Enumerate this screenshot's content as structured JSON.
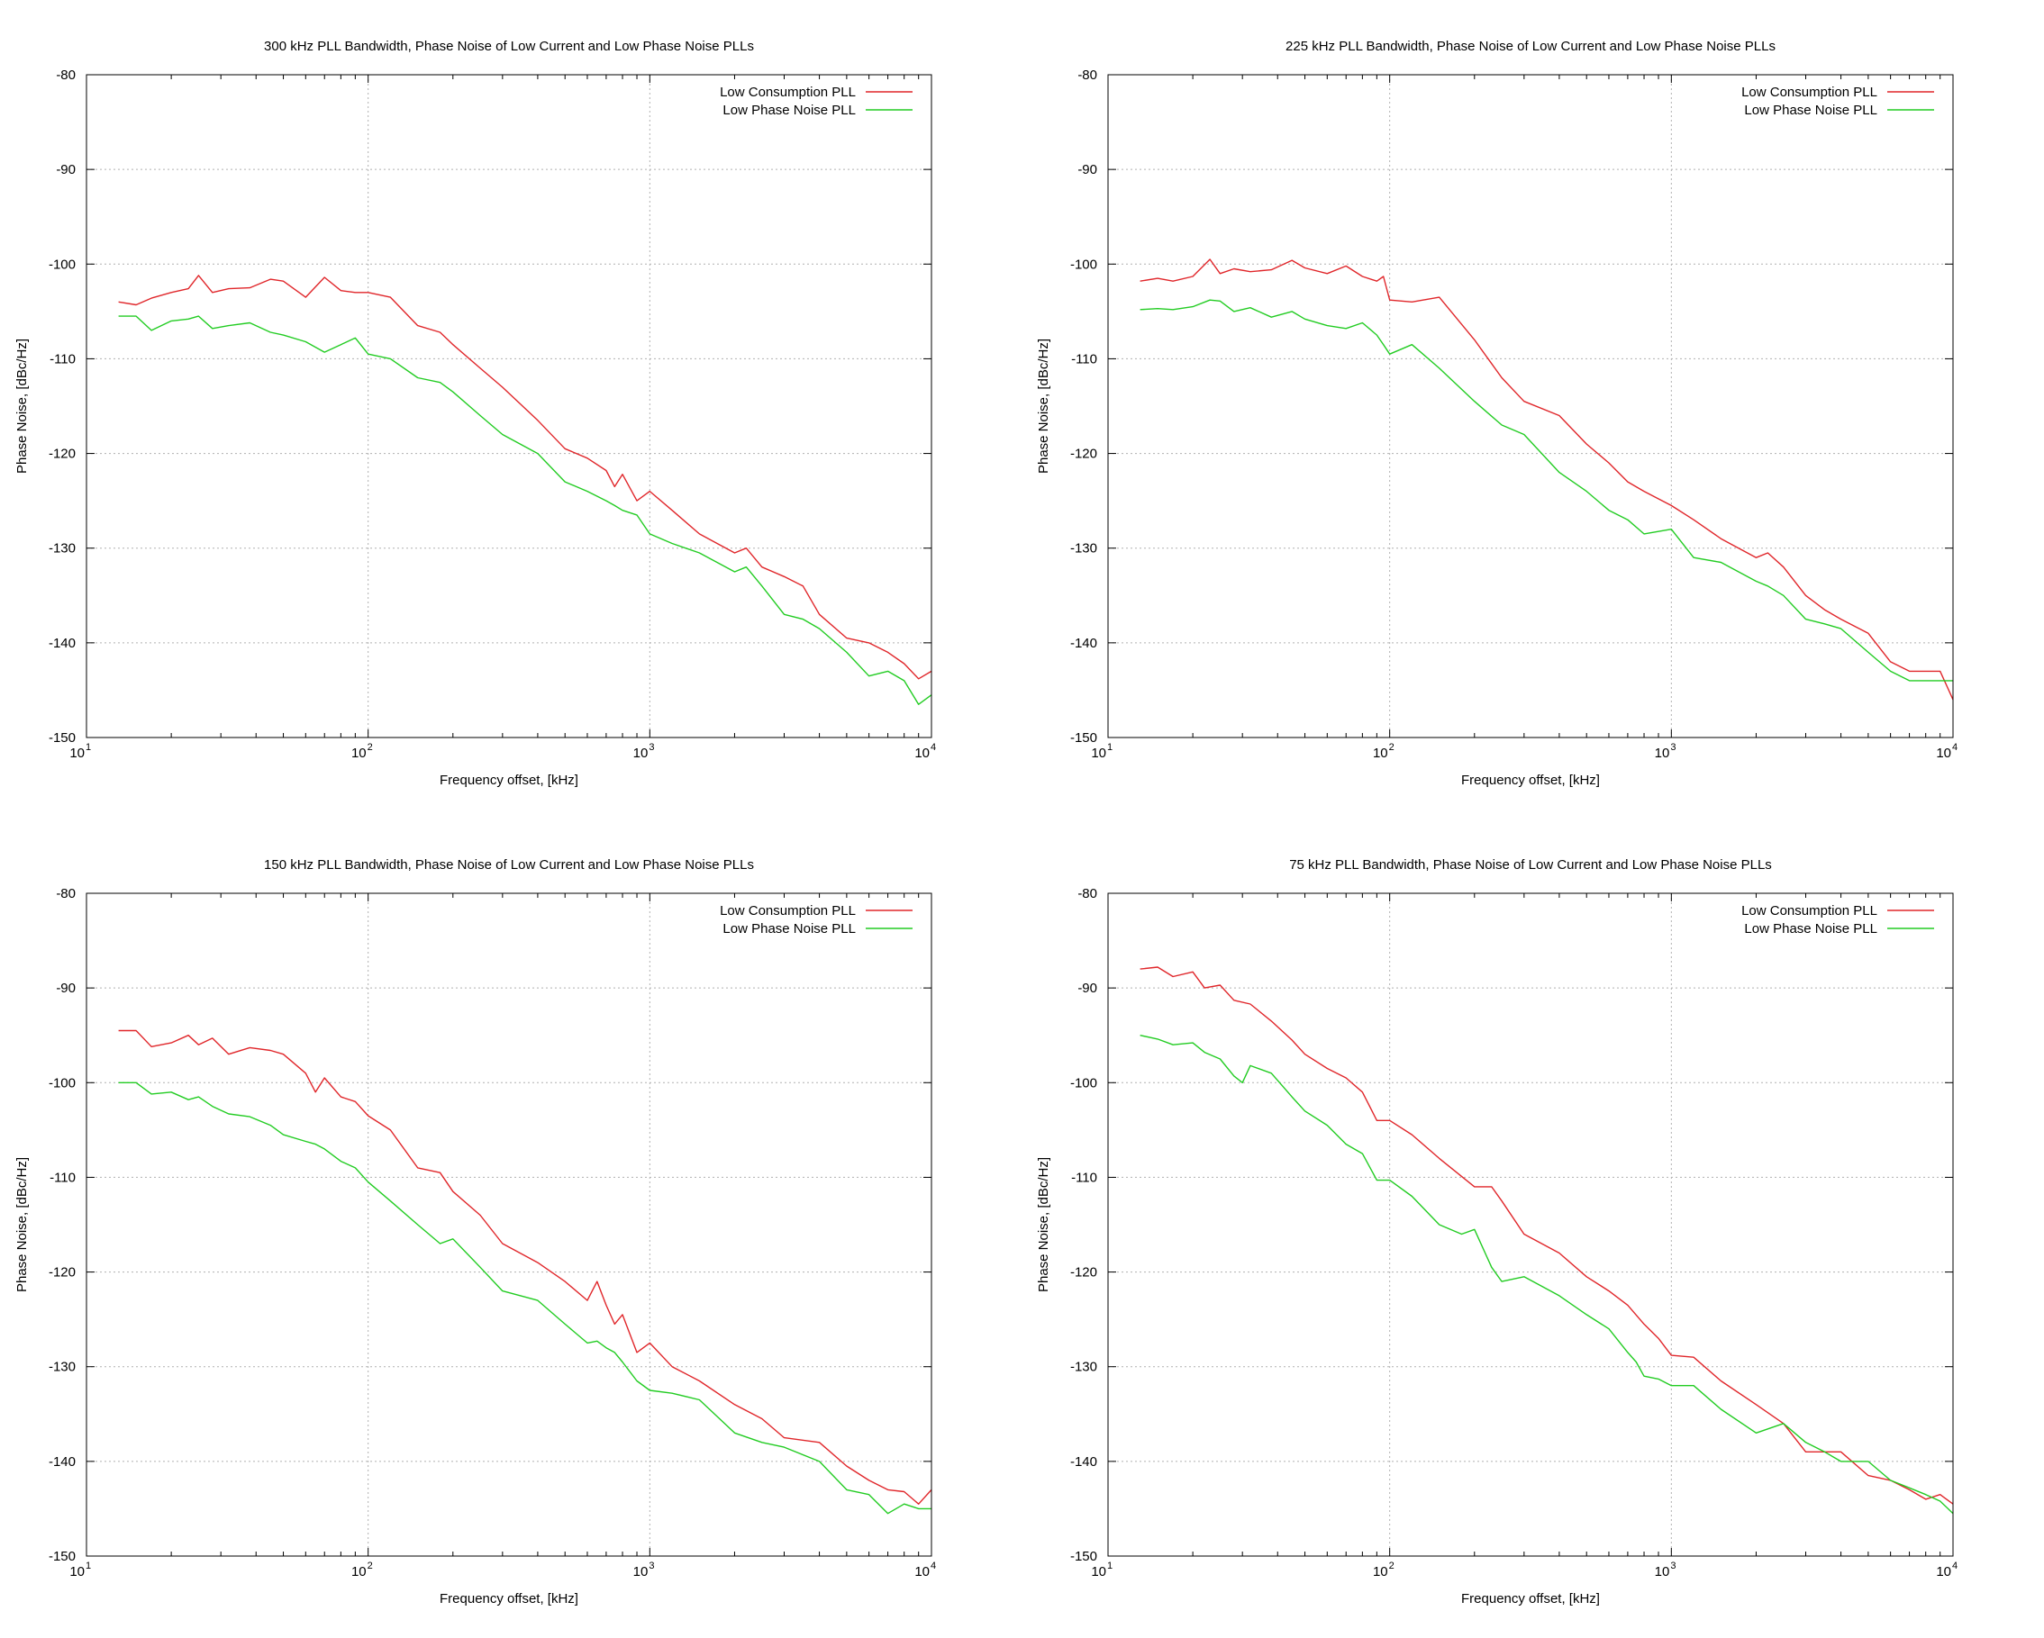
{
  "colors": {
    "low_consumption": "#e0262a",
    "low_phase_noise": "#22cc22",
    "grid": "#b0b0b0",
    "frame": "#000000"
  },
  "chart_data": [
    {
      "type": "line",
      "title": "300 kHz PLL Bandwidth, Phase Noise of Low Current and Low Phase Noise PLLs",
      "xlabel": "Frequency offset, [kHz]",
      "ylabel": "Phase Noise, [dBc/Hz]",
      "xscale": "log",
      "xlim": [
        10,
        10000
      ],
      "ylim": [
        -150,
        -80
      ],
      "x_ticks": [
        {
          "base": "10",
          "exp": "1"
        },
        {
          "base": "10",
          "exp": "2"
        },
        {
          "base": "10",
          "exp": "3"
        },
        {
          "base": "10",
          "exp": "4"
        }
      ],
      "y_ticks": [
        "-80",
        "-90",
        "-100",
        "-110",
        "-120",
        "-130",
        "-140",
        "-150"
      ],
      "grid": true,
      "legend": "top-right",
      "series": [
        {
          "name": "Low Consumption PLL",
          "x": [
            13,
            15,
            17,
            20,
            23,
            25,
            28,
            32,
            38,
            45,
            50,
            60,
            70,
            80,
            90,
            100,
            120,
            150,
            180,
            200,
            250,
            300,
            400,
            500,
            600,
            700,
            750,
            800,
            900,
            1000,
            1200,
            1500,
            2000,
            2200,
            2500,
            3000,
            3500,
            4000,
            5000,
            6000,
            7000,
            8000,
            9000,
            10000
          ],
          "values": [
            -104,
            -104.3,
            -103.6,
            -103,
            -102.6,
            -101.2,
            -103,
            -102.6,
            -102.5,
            -101.6,
            -101.8,
            -103.5,
            -101.4,
            -102.8,
            -103,
            -103,
            -103.5,
            -106.5,
            -107.2,
            -108.5,
            -111,
            -113,
            -116.5,
            -119.5,
            -120.5,
            -121.8,
            -123.5,
            -122.2,
            -125,
            -124,
            -126,
            -128.5,
            -130.5,
            -130,
            -132,
            -133,
            -134,
            -137,
            -139.5,
            -140,
            -141,
            -142.2,
            -143.8,
            -143
          ]
        },
        {
          "name": "Low Phase Noise PLL",
          "x": [
            13,
            15,
            17,
            20,
            23,
            25,
            28,
            32,
            38,
            45,
            50,
            60,
            70,
            80,
            90,
            100,
            120,
            150,
            180,
            200,
            250,
            300,
            400,
            500,
            600,
            700,
            750,
            800,
            900,
            1000,
            1200,
            1500,
            2000,
            2200,
            2500,
            3000,
            3500,
            4000,
            5000,
            6000,
            7000,
            8000,
            9000,
            10000
          ],
          "values": [
            -105.5,
            -105.5,
            -107,
            -106,
            -105.8,
            -105.5,
            -106.8,
            -106.5,
            -106.2,
            -107.2,
            -107.5,
            -108.2,
            -109.3,
            -108.5,
            -107.8,
            -109.5,
            -110,
            -112,
            -112.5,
            -113.5,
            -116,
            -118,
            -120,
            -123,
            -124,
            -125,
            -125.5,
            -126,
            -126.5,
            -128.5,
            -129.5,
            -130.5,
            -132.5,
            -132,
            -134,
            -137,
            -137.5,
            -138.5,
            -141,
            -143.5,
            -143,
            -144,
            -146.5,
            -145.5
          ]
        }
      ]
    },
    {
      "type": "line",
      "title": "225 kHz PLL Bandwidth, Phase Noise of Low Current and Low Phase Noise PLLs",
      "xlabel": "Frequency offset, [kHz]",
      "ylabel": "Phase Noise, [dBc/Hz]",
      "xscale": "log",
      "xlim": [
        10,
        10000
      ],
      "ylim": [
        -150,
        -80
      ],
      "x_ticks": [
        {
          "base": "10",
          "exp": "1"
        },
        {
          "base": "10",
          "exp": "2"
        },
        {
          "base": "10",
          "exp": "3"
        },
        {
          "base": "10",
          "exp": "4"
        }
      ],
      "y_ticks": [
        "-80",
        "-90",
        "-100",
        "-110",
        "-120",
        "-130",
        "-140",
        "-150"
      ],
      "grid": true,
      "legend": "top-right",
      "series": [
        {
          "name": "Low Consumption PLL",
          "x": [
            13,
            15,
            17,
            20,
            23,
            25,
            28,
            32,
            38,
            45,
            50,
            60,
            70,
            80,
            90,
            95,
            100,
            120,
            150,
            200,
            250,
            300,
            400,
            500,
            600,
            700,
            800,
            1000,
            1200,
            1500,
            2000,
            2200,
            2500,
            3000,
            3500,
            4000,
            5000,
            6000,
            7000,
            8000,
            9000,
            10000
          ],
          "values": [
            -101.8,
            -101.5,
            -101.8,
            -101.3,
            -99.5,
            -101,
            -100.5,
            -100.8,
            -100.6,
            -99.6,
            -100.4,
            -101,
            -100.2,
            -101.3,
            -101.8,
            -101.3,
            -103.8,
            -104,
            -103.5,
            -108,
            -112,
            -114.5,
            -116,
            -119,
            -121,
            -123,
            -124,
            -125.5,
            -127,
            -129,
            -131,
            -130.5,
            -132,
            -135,
            -136.5,
            -137.5,
            -139,
            -142,
            -143,
            -143,
            -143,
            -146
          ]
        },
        {
          "name": "Low Phase Noise PLL",
          "x": [
            13,
            15,
            17,
            20,
            23,
            25,
            28,
            32,
            38,
            45,
            50,
            60,
            70,
            80,
            90,
            95,
            100,
            120,
            150,
            200,
            250,
            300,
            400,
            500,
            600,
            700,
            800,
            1000,
            1200,
            1500,
            2000,
            2200,
            2500,
            3000,
            3500,
            4000,
            5000,
            6000,
            7000,
            8000,
            9000,
            10000
          ],
          "values": [
            -104.8,
            -104.7,
            -104.8,
            -104.5,
            -103.8,
            -103.9,
            -105,
            -104.6,
            -105.6,
            -105,
            -105.8,
            -106.5,
            -106.8,
            -106.2,
            -107.5,
            -108.5,
            -109.5,
            -108.5,
            -111,
            -114.5,
            -117,
            -118,
            -122,
            -124,
            -126,
            -127,
            -128.5,
            -128,
            -131,
            -131.5,
            -133.5,
            -134,
            -135,
            -137.5,
            -138,
            -138.5,
            -141,
            -143,
            -144,
            -144,
            -144,
            -144
          ]
        }
      ]
    },
    {
      "type": "line",
      "title": "150 kHz PLL Bandwidth, Phase Noise of Low Current and Low Phase Noise PLLs",
      "xlabel": "Frequency offset, [kHz]",
      "ylabel": "Phase Noise, [dBc/Hz]",
      "xscale": "log",
      "xlim": [
        10,
        10000
      ],
      "ylim": [
        -150,
        -80
      ],
      "x_ticks": [
        {
          "base": "10",
          "exp": "1"
        },
        {
          "base": "10",
          "exp": "2"
        },
        {
          "base": "10",
          "exp": "3"
        },
        {
          "base": "10",
          "exp": "4"
        }
      ],
      "y_ticks": [
        "-80",
        "-90",
        "-100",
        "-110",
        "-120",
        "-130",
        "-140",
        "-150"
      ],
      "grid": true,
      "legend": "top-right",
      "series": [
        {
          "name": "Low Consumption PLL",
          "x": [
            13,
            15,
            17,
            20,
            23,
            25,
            28,
            32,
            38,
            45,
            50,
            60,
            65,
            70,
            80,
            90,
            100,
            120,
            150,
            180,
            200,
            250,
            300,
            400,
            500,
            600,
            650,
            700,
            750,
            800,
            900,
            1000,
            1200,
            1500,
            2000,
            2500,
            3000,
            4000,
            5000,
            6000,
            7000,
            8000,
            9000,
            10000
          ],
          "values": [
            -94.5,
            -94.5,
            -96.2,
            -95.8,
            -95,
            -96,
            -95.3,
            -97,
            -96.3,
            -96.6,
            -97,
            -99,
            -101,
            -99.5,
            -101.5,
            -102,
            -103.5,
            -105,
            -109,
            -109.5,
            -111.5,
            -114,
            -117,
            -119,
            -121,
            -123,
            -121,
            -123.5,
            -125.5,
            -124.5,
            -128.5,
            -127.5,
            -130,
            -131.5,
            -134,
            -135.5,
            -137.5,
            -138,
            -140.5,
            -142,
            -143,
            -143.2,
            -144.5,
            -143
          ]
        },
        {
          "name": "Low Phase Noise PLL",
          "x": [
            13,
            15,
            17,
            20,
            23,
            25,
            28,
            32,
            38,
            45,
            50,
            60,
            65,
            70,
            80,
            90,
            100,
            120,
            150,
            180,
            200,
            250,
            300,
            400,
            500,
            600,
            650,
            700,
            750,
            800,
            900,
            1000,
            1200,
            1500,
            2000,
            2500,
            3000,
            4000,
            5000,
            6000,
            7000,
            8000,
            9000,
            10000
          ],
          "values": [
            -100,
            -100,
            -101.2,
            -101,
            -101.8,
            -101.5,
            -102.5,
            -103.3,
            -103.6,
            -104.5,
            -105.5,
            -106.2,
            -106.5,
            -107,
            -108.3,
            -109,
            -110.5,
            -112.5,
            -115,
            -117,
            -116.5,
            -119.5,
            -122,
            -123,
            -125.5,
            -127.5,
            -127.3,
            -128,
            -128.5,
            -129.5,
            -131.5,
            -132.5,
            -132.8,
            -133.5,
            -137,
            -138,
            -138.5,
            -140,
            -143,
            -143.5,
            -145.5,
            -144.5,
            -145,
            -145
          ]
        }
      ]
    },
    {
      "type": "line",
      "title": "75 kHz PLL Bandwidth, Phase Noise of Low Current and Low Phase Noise PLLs",
      "xlabel": "Frequency offset, [kHz]",
      "ylabel": "Phase Noise, [dBc/Hz]",
      "xscale": "log",
      "xlim": [
        10,
        10000
      ],
      "ylim": [
        -150,
        -80
      ],
      "x_ticks": [
        {
          "base": "10",
          "exp": "1"
        },
        {
          "base": "10",
          "exp": "2"
        },
        {
          "base": "10",
          "exp": "3"
        },
        {
          "base": "10",
          "exp": "4"
        }
      ],
      "y_ticks": [
        "-80",
        "-90",
        "-100",
        "-110",
        "-120",
        "-130",
        "-140",
        "-150"
      ],
      "grid": true,
      "legend": "top-right",
      "series": [
        {
          "name": "Low Consumption PLL",
          "x": [
            13,
            15,
            17,
            20,
            22,
            25,
            28,
            32,
            38,
            45,
            50,
            60,
            70,
            80,
            90,
            100,
            120,
            150,
            200,
            230,
            250,
            300,
            400,
            500,
            600,
            700,
            800,
            900,
            1000,
            1200,
            1500,
            2000,
            2500,
            3000,
            3500,
            4000,
            5000,
            6000,
            7000,
            8000,
            9000,
            10000
          ],
          "values": [
            -88,
            -87.8,
            -88.8,
            -88.3,
            -90,
            -89.7,
            -91.3,
            -91.7,
            -93.5,
            -95.5,
            -97,
            -98.5,
            -99.5,
            -101,
            -104,
            -104,
            -105.5,
            -108,
            -111,
            -111,
            -112.5,
            -116,
            -118,
            -120.5,
            -122,
            -123.5,
            -125.5,
            -127,
            -128.8,
            -129,
            -131.5,
            -134,
            -136,
            -139,
            -139,
            -139,
            -141.5,
            -142,
            -143,
            -144,
            -143.5,
            -144.5
          ]
        },
        {
          "name": "Low Phase Noise PLL",
          "x": [
            13,
            15,
            17,
            20,
            22,
            25,
            28,
            30,
            32,
            38,
            45,
            50,
            60,
            70,
            80,
            90,
            100,
            120,
            150,
            180,
            200,
            230,
            250,
            300,
            400,
            500,
            600,
            700,
            750,
            800,
            900,
            1000,
            1200,
            1500,
            2000,
            2500,
            3000,
            3500,
            4000,
            5000,
            6000,
            7000,
            8000,
            9000,
            10000
          ],
          "values": [
            -95,
            -95.4,
            -96,
            -95.8,
            -96.8,
            -97.5,
            -99.3,
            -100,
            -98.2,
            -99,
            -101.5,
            -103,
            -104.5,
            -106.5,
            -107.5,
            -110.3,
            -110.3,
            -112,
            -115,
            -116,
            -115.5,
            -119.5,
            -121,
            -120.5,
            -122.5,
            -124.5,
            -126,
            -128.5,
            -129.5,
            -131,
            -131.3,
            -132,
            -132,
            -134.5,
            -137,
            -136,
            -138,
            -139,
            -140,
            -140,
            -142,
            -142.8,
            -143.5,
            -144.2,
            -145.5
          ]
        }
      ]
    }
  ]
}
